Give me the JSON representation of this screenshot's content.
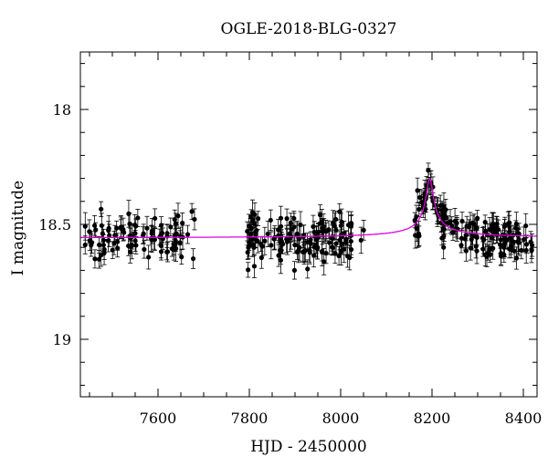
{
  "chart_data": {
    "type": "scatter",
    "title": "OGLE-2018-BLG-0327",
    "xlabel": "HJD - 2450000",
    "ylabel": "I magnitude",
    "xlim": [
      7430,
      8430
    ],
    "ylim": [
      19.25,
      17.75
    ],
    "y_inverted": true,
    "xticks": [
      7600,
      7800,
      8000,
      8200,
      8400
    ],
    "yticks": [
      18,
      18.5,
      19
    ],
    "ytick_labels": [
      "18",
      "18.5",
      "19"
    ],
    "baseline_mag": 18.56,
    "colors": {
      "points": "#000000",
      "model": "#e000e0"
    },
    "series": [
      {
        "marker": "dot-with-errorbars",
        "segments": [
          {
            "start": 7440,
            "end": 7680,
            "n": 95
          },
          {
            "start": 7795,
            "end": 8025,
            "n": 140
          },
          {
            "start": 8040,
            "end": 8055,
            "n": 2
          },
          {
            "start": 8160,
            "end": 8420,
            "n": 150
          }
        ],
        "scatter_sigma": 0.05,
        "error_range": [
          0.03,
          0.06
        ]
      }
    ],
    "model_curve": {
      "t0": 8195,
      "peak_mag": 18.3,
      "width": 14,
      "points": [
        [
          7430,
          18.56
        ],
        [
          8100,
          18.56
        ],
        [
          8120,
          18.555
        ],
        [
          8140,
          18.545
        ],
        [
          8155,
          18.52
        ],
        [
          8165,
          18.49
        ],
        [
          8175,
          18.44
        ],
        [
          8185,
          18.37
        ],
        [
          8190,
          18.33
        ],
        [
          8195,
          18.3
        ],
        [
          8200,
          18.32
        ],
        [
          8205,
          18.36
        ],
        [
          8215,
          18.44
        ],
        [
          8225,
          18.49
        ],
        [
          8240,
          18.53
        ],
        [
          8260,
          18.55
        ],
        [
          8290,
          18.56
        ],
        [
          8430,
          18.56
        ]
      ]
    }
  }
}
